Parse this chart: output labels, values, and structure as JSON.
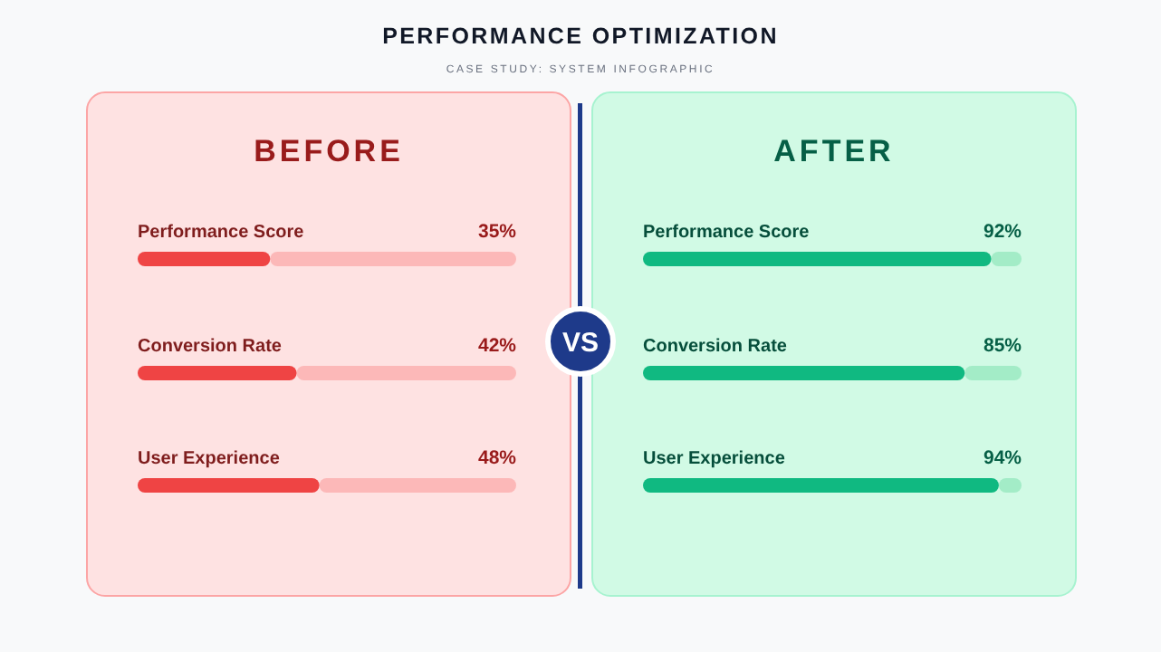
{
  "chart_data": [
    {
      "type": "other",
      "title": "PERFORMANCE OPTIMIZATION",
      "subtitle": "CASE STUDY: SYSTEM INFOGRAPHIC",
      "annotations": [
        "VS"
      ]
    },
    {
      "type": "bar",
      "orientation": "horizontal",
      "title": "BEFORE",
      "categories": [
        "Performance Score",
        "Conversion Rate",
        "User Experience"
      ],
      "values": [
        35,
        42,
        48
      ],
      "value_labels": [
        "35%",
        "42%",
        "48%"
      ],
      "color": "#ef4444",
      "xlim": [
        0,
        100
      ],
      "tick_labels": false
    },
    {
      "type": "bar",
      "orientation": "horizontal",
      "title": "AFTER",
      "categories": [
        "Performance Score",
        "Conversion Rate",
        "User Experience"
      ],
      "values": [
        92,
        85,
        94
      ],
      "value_labels": [
        "92%",
        "85%",
        "94%"
      ],
      "color": "#10b981",
      "xlim": [
        0,
        100
      ],
      "tick_labels": false
    }
  ]
}
